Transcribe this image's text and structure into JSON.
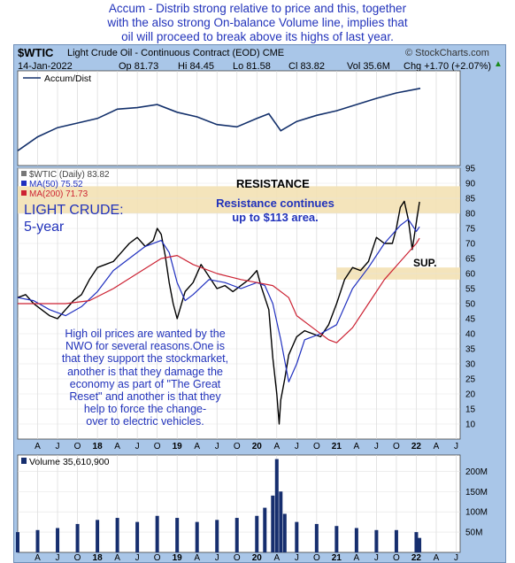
{
  "headline": "Accum - Distrib strong relative to price and this, together\nwith the also strong On-balance Volume line, implies that\noil will proceed to break above its highs of last year.",
  "header": {
    "symbol": "$WTIC",
    "description": "Light Crude Oil - Continuous Contract (EOD) CME",
    "date": "14-Jan-2022",
    "open": "Op 81.73",
    "high": "Hi 84.45",
    "low": "Lo 81.58",
    "close": "Cl 83.82",
    "volume": "Vol 35.6M",
    "change": "Chg +1.70 (+2.07%)",
    "credit": "© StockCharts.com",
    "change_arrow": "up-triangle-icon"
  },
  "annotations": {
    "resistance": "RESISTANCE",
    "resistance_note": "Resistance continues\nup to $113 area.",
    "support": "SUP.",
    "light_crude": "LIGHT CRUDE:\n5-year",
    "commentary": "High oil prices are wanted by the\nNWO for several reasons.One is\nthat they support the stockmarket,\nanother is that they damage the\neconomy as part of \"The Great\nReset\" and another is that they\nhelp to force the change-\nover to electric vehicles."
  },
  "colors": {
    "price": "#000000",
    "ma50": "#1f2fbf",
    "ma200": "#cc2233",
    "accum": "#13306b",
    "volume": "#162e6e",
    "resistance_band": "#f3e1b4",
    "text_blue": "#2233bb"
  },
  "chart_data": [
    {
      "type": "line",
      "panel": "indicator",
      "legend": [
        "Accum/Dist"
      ],
      "series": [
        {
          "name": "Accum/Dist",
          "x": [
            2017.0,
            2017.25,
            2017.5,
            2017.75,
            2018.0,
            2018.25,
            2018.5,
            2018.75,
            2019.0,
            2019.25,
            2019.5,
            2019.75,
            2020.0,
            2020.15,
            2020.3,
            2020.5,
            2020.75,
            2021.0,
            2021.25,
            2021.5,
            2021.75,
            2022.0,
            2022.05
          ],
          "values": [
            10,
            28,
            40,
            46,
            52,
            64,
            66,
            70,
            60,
            54,
            44,
            41,
            52,
            58,
            36,
            48,
            56,
            62,
            70,
            78,
            85,
            90,
            91
          ]
        }
      ]
    },
    {
      "type": "line",
      "panel": "price",
      "legend": [
        "$WTIC (Daily) 83.82",
        "MA(50) 75.52",
        "MA(200) 71.73"
      ],
      "ylim": [
        5,
        95
      ],
      "yticks": [
        10,
        15,
        20,
        25,
        30,
        35,
        40,
        45,
        50,
        55,
        60,
        65,
        70,
        75,
        80,
        85,
        90,
        95
      ],
      "xticks": [
        "A",
        "J",
        "O",
        "18",
        "A",
        "J",
        "O",
        "19",
        "A",
        "J",
        "O",
        "20",
        "A",
        "J",
        "O",
        "21",
        "A",
        "J",
        "O",
        "22",
        "A",
        "J"
      ],
      "xtick_pos": [
        2017.25,
        2017.5,
        2017.75,
        2018.0,
        2018.25,
        2018.5,
        2018.75,
        2019.0,
        2019.25,
        2019.5,
        2019.75,
        2020.0,
        2020.25,
        2020.5,
        2020.75,
        2021.0,
        2021.25,
        2021.5,
        2021.75,
        2022.0,
        2022.25,
        2022.5
      ],
      "resistance_band": [
        80,
        89
      ],
      "support_band": [
        58,
        62
      ],
      "series": [
        {
          "name": "$WTIC (Daily) 83.82",
          "x": [
            2017.0,
            2017.1,
            2017.2,
            2017.3,
            2017.4,
            2017.5,
            2017.6,
            2017.7,
            2017.8,
            2017.9,
            2018.0,
            2018.1,
            2018.2,
            2018.3,
            2018.4,
            2018.5,
            2018.6,
            2018.7,
            2018.75,
            2018.8,
            2018.85,
            2018.9,
            2018.95,
            2019.0,
            2019.1,
            2019.2,
            2019.3,
            2019.4,
            2019.5,
            2019.6,
            2019.7,
            2019.8,
            2019.9,
            2020.0,
            2020.05,
            2020.1,
            2020.15,
            2020.2,
            2020.25,
            2020.28,
            2020.3,
            2020.35,
            2020.4,
            2020.5,
            2020.6,
            2020.7,
            2020.8,
            2020.9,
            2021.0,
            2021.1,
            2021.2,
            2021.3,
            2021.4,
            2021.5,
            2021.6,
            2021.7,
            2021.75,
            2021.8,
            2021.85,
            2021.9,
            2021.95,
            2022.0,
            2022.04
          ],
          "values": [
            52,
            53,
            50,
            48,
            46,
            45,
            48,
            51,
            53,
            58,
            62,
            63,
            64,
            67,
            70,
            72,
            69,
            71,
            75,
            73,
            66,
            57,
            50,
            45,
            54,
            57,
            63,
            59,
            55,
            56,
            54,
            56,
            58,
            61,
            56,
            52,
            48,
            32,
            20,
            10,
            18,
            25,
            33,
            39,
            41,
            40,
            39,
            43,
            50,
            58,
            62,
            61,
            64,
            72,
            70,
            70,
            75,
            82,
            84,
            78,
            68,
            77,
            83.82
          ]
        },
        {
          "name": "MA(50) 75.52",
          "x": [
            2017.0,
            2017.2,
            2017.4,
            2017.6,
            2017.8,
            2018.0,
            2018.2,
            2018.4,
            2018.6,
            2018.8,
            2018.9,
            2019.0,
            2019.1,
            2019.2,
            2019.4,
            2019.6,
            2019.8,
            2020.0,
            2020.1,
            2020.2,
            2020.3,
            2020.4,
            2020.5,
            2020.6,
            2020.8,
            2021.0,
            2021.2,
            2021.4,
            2021.6,
            2021.8,
            2021.9,
            2022.0,
            2022.04
          ],
          "values": [
            52,
            51,
            48,
            46,
            49,
            54,
            61,
            65,
            69,
            71,
            67,
            57,
            51,
            53,
            58,
            57,
            55,
            57,
            56,
            50,
            38,
            24,
            30,
            38,
            40,
            43,
            55,
            62,
            70,
            76,
            78,
            74,
            75.52
          ]
        },
        {
          "name": "MA(200) 71.73",
          "x": [
            2017.0,
            2017.3,
            2017.6,
            2017.9,
            2018.2,
            2018.5,
            2018.8,
            2019.0,
            2019.2,
            2019.5,
            2019.8,
            2020.0,
            2020.2,
            2020.4,
            2020.5,
            2020.7,
            2020.9,
            2021.0,
            2021.2,
            2021.4,
            2021.6,
            2021.8,
            2022.0,
            2022.04
          ],
          "values": [
            50,
            50,
            50,
            51,
            55,
            60,
            65,
            66,
            63,
            60,
            58,
            57,
            56,
            52,
            46,
            42,
            38,
            37,
            42,
            50,
            58,
            64,
            70,
            71.73
          ]
        }
      ]
    },
    {
      "type": "bar",
      "panel": "volume",
      "legend": [
        "Volume 35,610,900"
      ],
      "ylim": [
        0,
        240000000
      ],
      "yticks": [
        50000000,
        100000000,
        150000000,
        200000000
      ],
      "ytick_labels": [
        "50M",
        "100M",
        "150M",
        "200M"
      ],
      "xticks": [
        "A",
        "J",
        "O",
        "18",
        "A",
        "J",
        "O",
        "19",
        "A",
        "J",
        "O",
        "20",
        "A",
        "J",
        "O",
        "21",
        "A",
        "J",
        "O",
        "22",
        "A",
        "J"
      ],
      "x": [
        2017.0,
        2017.25,
        2017.5,
        2017.75,
        2018.0,
        2018.25,
        2018.5,
        2018.75,
        2019.0,
        2019.25,
        2019.5,
        2019.75,
        2020.0,
        2020.1,
        2020.2,
        2020.25,
        2020.3,
        2020.35,
        2020.5,
        2020.75,
        2021.0,
        2021.25,
        2021.5,
        2021.75,
        2022.0,
        2022.04
      ],
      "values": [
        50000000,
        55000000,
        60000000,
        70000000,
        80000000,
        85000000,
        75000000,
        90000000,
        85000000,
        75000000,
        80000000,
        85000000,
        90000000,
        110000000,
        140000000,
        230000000,
        150000000,
        95000000,
        75000000,
        70000000,
        65000000,
        60000000,
        55000000,
        55000000,
        50000000,
        35610900
      ]
    }
  ]
}
